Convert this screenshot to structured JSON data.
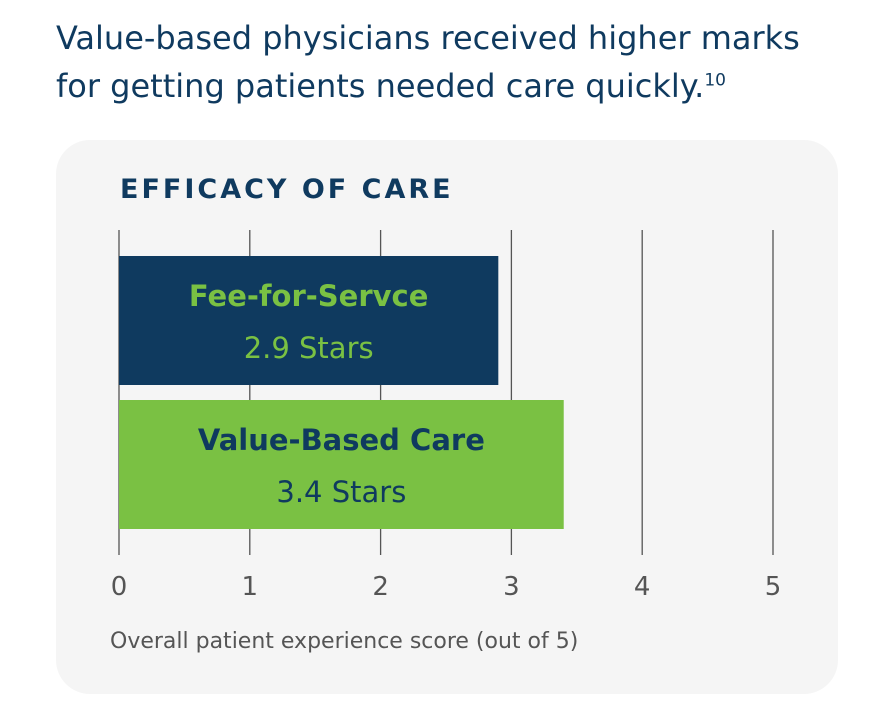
{
  "headline": {
    "line1": "Value-based physicians received higher marks",
    "line2": "for getting patients needed care quickly.",
    "footnote": "10"
  },
  "chart_data": {
    "type": "bar",
    "orientation": "horizontal",
    "title": "EFFICACY OF CARE",
    "xlabel": "Overall patient experience score (out of 5)",
    "ylabel": "",
    "xlim": [
      0,
      5
    ],
    "x_ticks": [
      "0",
      "1",
      "2",
      "3",
      "4",
      "5"
    ],
    "grid": true,
    "bars": [
      {
        "category": "Fee-for-Servce",
        "value": 2.9,
        "value_label": "2.9 Stars",
        "fill": "#0f3a5f",
        "text_color": "#7ac143"
      },
      {
        "category": "Value-Based Care",
        "value": 3.4,
        "value_label": "3.4 Stars",
        "fill": "#7ac143",
        "text_color": "#0f3a5f"
      }
    ]
  },
  "colors": {
    "navy": "#0f3a5f",
    "green": "#7ac143",
    "card_bg": "#f5f5f5",
    "gridline": "#555555",
    "axis_text": "#555555"
  }
}
